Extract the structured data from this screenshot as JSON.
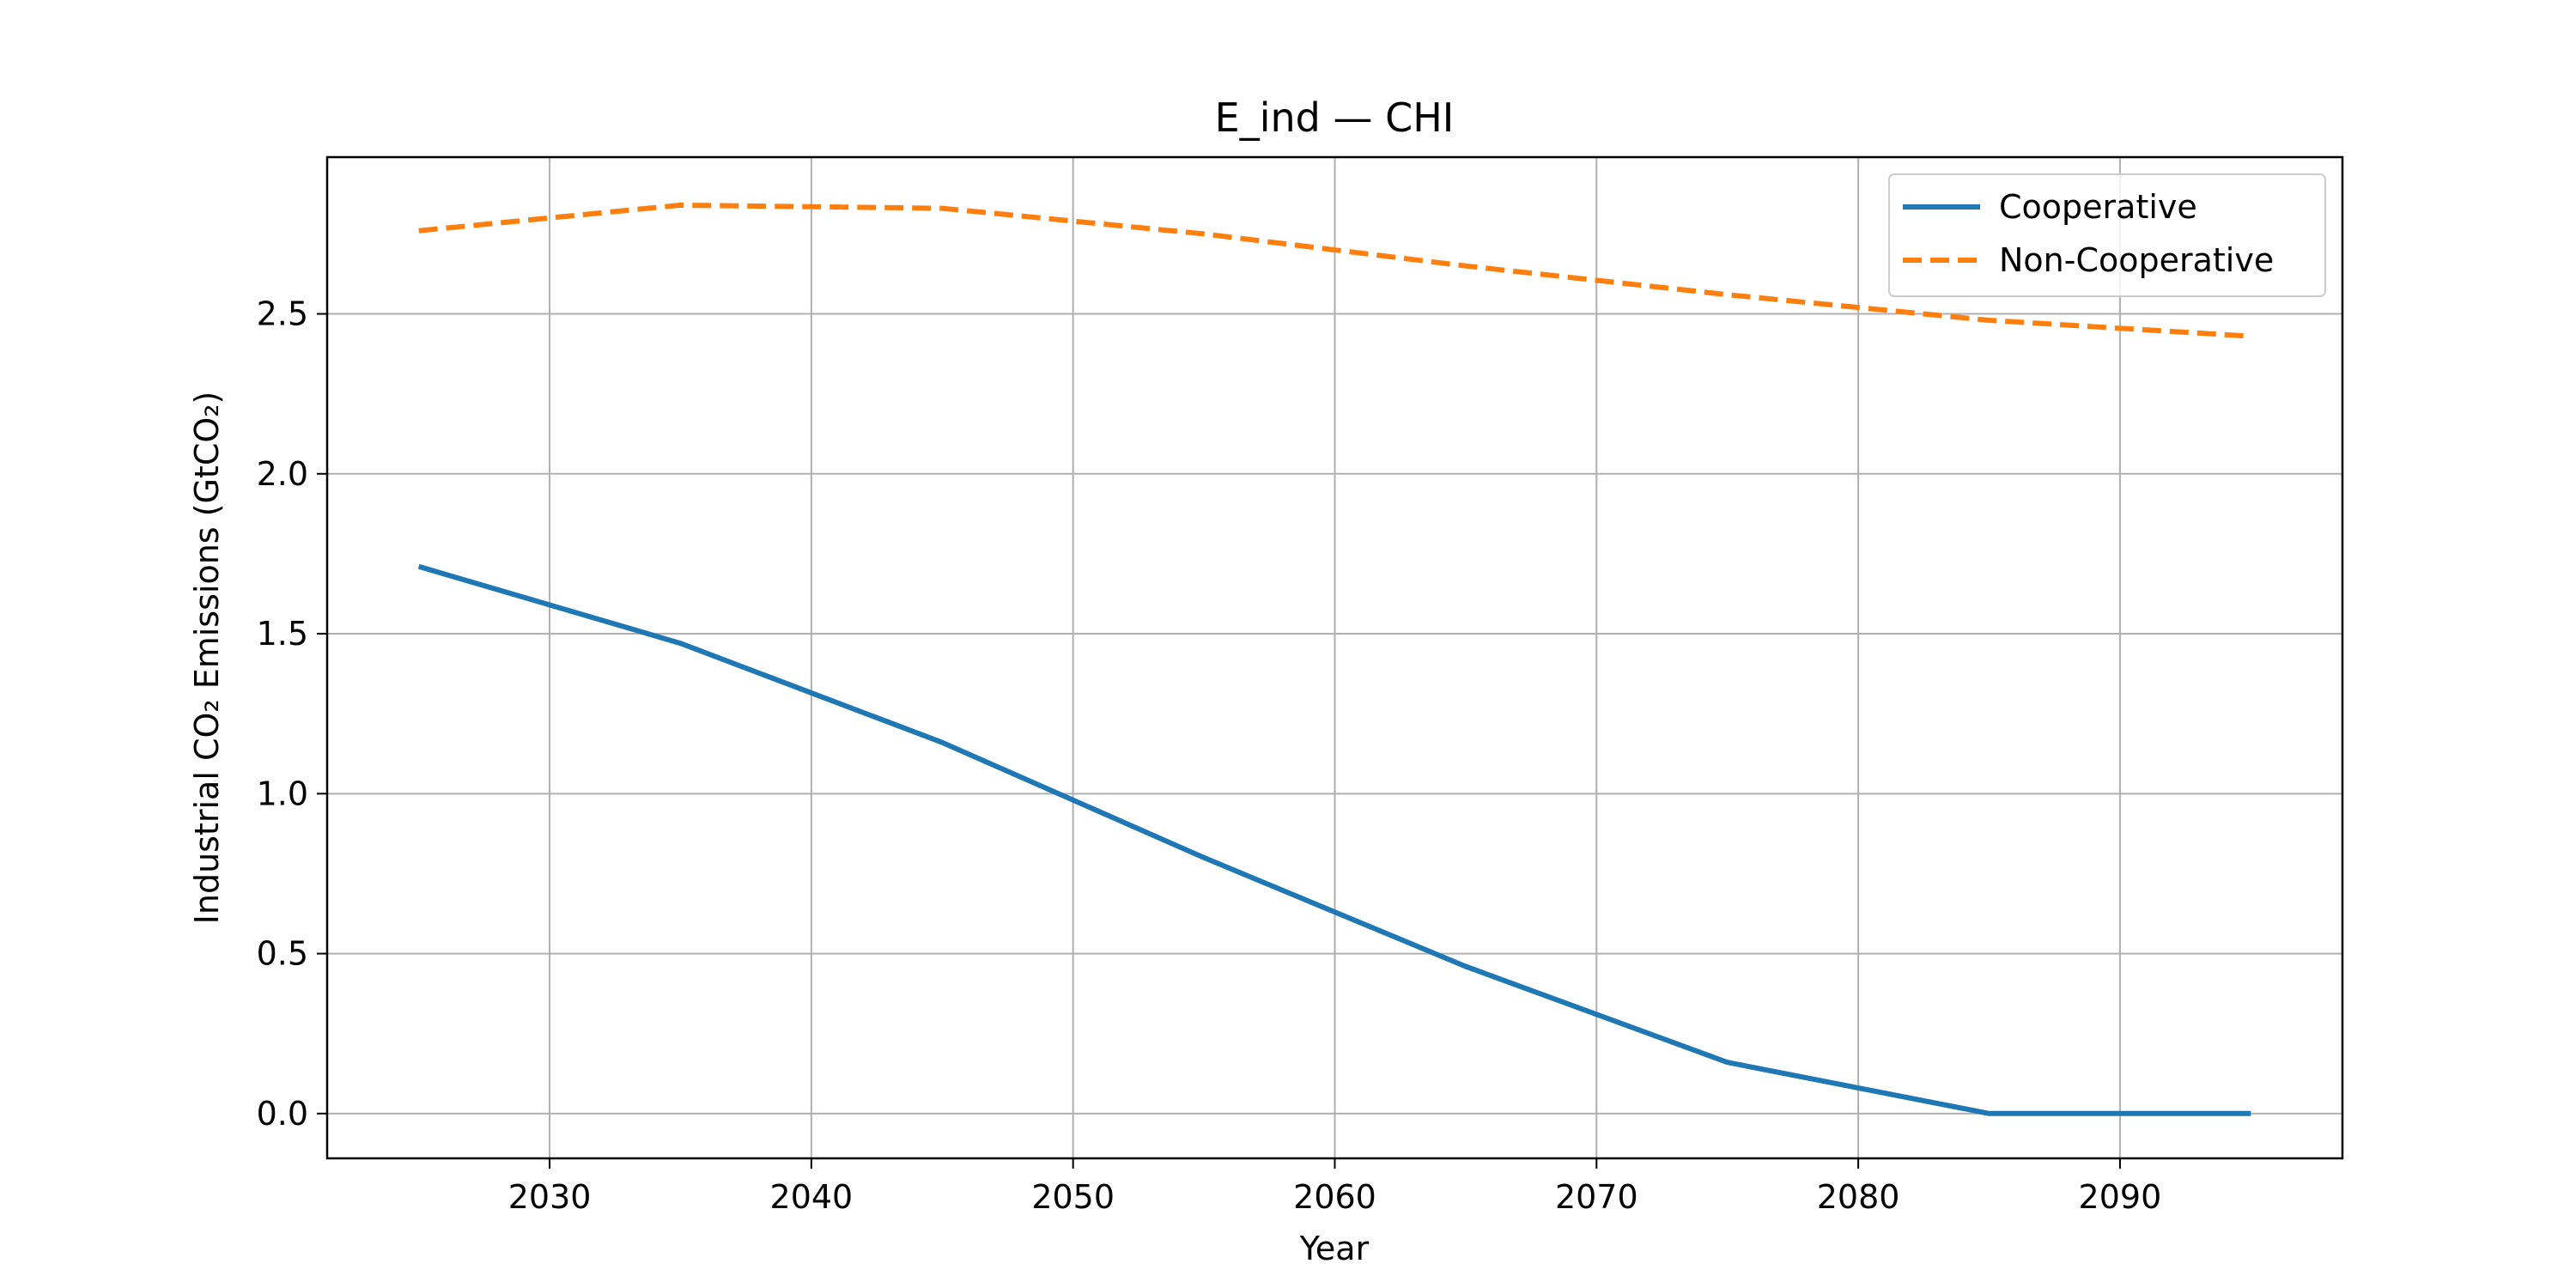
{
  "chart_data": {
    "type": "line",
    "title": "E_ind — CHI",
    "xlabel": "Year",
    "ylabel": "Industrial CO₂ Emissions (GtCO₂)",
    "xlim": [
      2021.5,
      2098.5
    ],
    "ylim": [
      -0.14,
      2.99
    ],
    "xticks": [
      2030,
      2040,
      2050,
      2060,
      2070,
      2080,
      2090
    ],
    "xtick_labels": [
      "2030",
      "2040",
      "2050",
      "2060",
      "2070",
      "2080",
      "2090"
    ],
    "yticks": [
      0.0,
      0.5,
      1.0,
      1.5,
      2.0,
      2.5
    ],
    "ytick_labels": [
      "0.0",
      "0.5",
      "1.0",
      "1.5",
      "2.0",
      "2.5"
    ],
    "grid": true,
    "legend_position": "top-right",
    "x": [
      2025,
      2035,
      2045,
      2055,
      2065,
      2075,
      2085,
      2095
    ],
    "series": [
      {
        "name": "Cooperative",
        "style": "solid",
        "color": "#1f77b4",
        "values": [
          1.71,
          1.47,
          1.16,
          0.8,
          0.46,
          0.16,
          0.0,
          0.0
        ]
      },
      {
        "name": "Non-Cooperative",
        "style": "dashed",
        "color": "#ff7f0e",
        "values": [
          2.76,
          2.84,
          2.83,
          2.75,
          2.65,
          2.56,
          2.48,
          2.43
        ]
      }
    ]
  }
}
